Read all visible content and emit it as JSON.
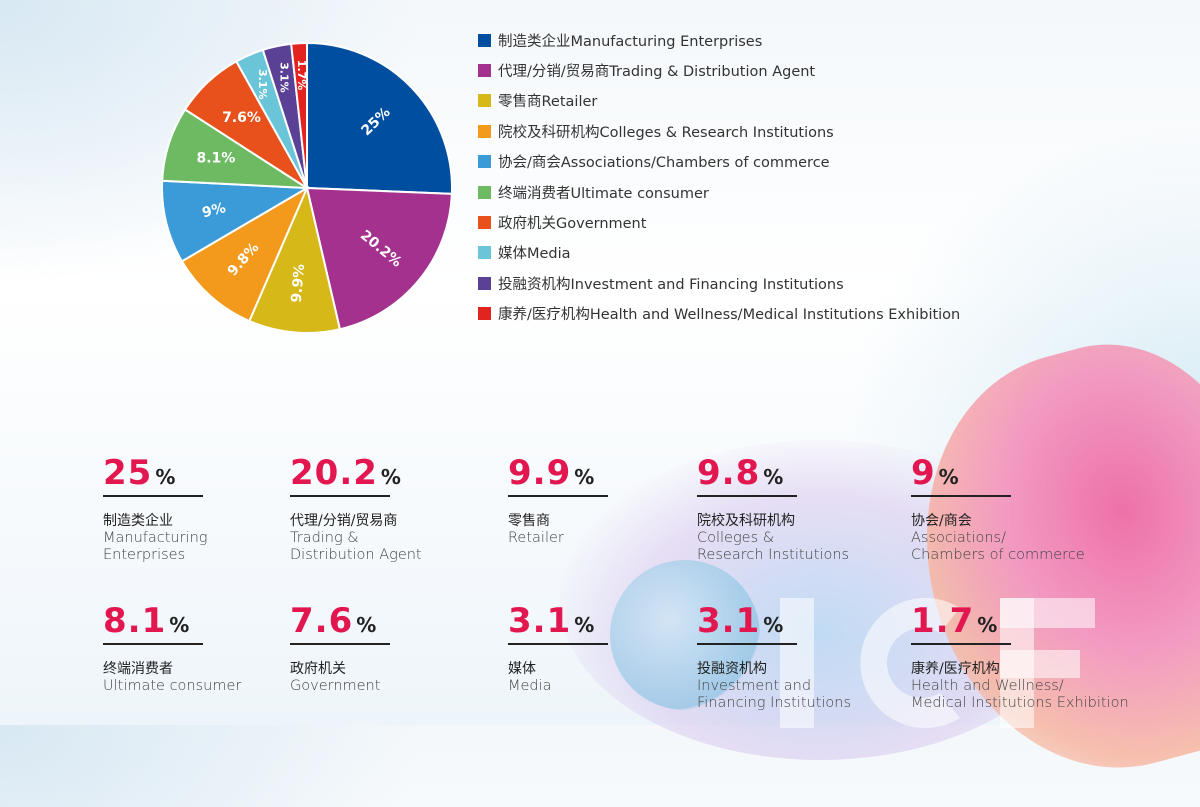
{
  "chart_data": {
    "type": "pie",
    "start": "top, clockwise",
    "slices": [
      {
        "label": "制造类企业Manufacturing Enterprises",
        "value": 25,
        "text": "25%",
        "color": "#004e9f"
      },
      {
        "label": "代理/分销/贸易商Trading & Distribution Agent",
        "value": 20.2,
        "text": "20.2%",
        "color": "#a4318e"
      },
      {
        "label": "零售商Retailer",
        "value": 9.9,
        "text": "9.9%",
        "color": "#d6b818"
      },
      {
        "label": "院校及科研机构Colleges & Research Institutions",
        "value": 9.8,
        "text": "9.8%",
        "color": "#f39a1d"
      },
      {
        "label": "协会/商会Associations/Chambers of commerce",
        "value": 9,
        "text": "9%",
        "color": "#3a9bd8"
      },
      {
        "label": "终端消费者Ultimate consumer",
        "value": 8.1,
        "text": "8.1%",
        "color": "#6dba63"
      },
      {
        "label": "政府机关Government",
        "value": 7.6,
        "text": "7.6%",
        "color": "#e8501c"
      },
      {
        "label": "媒体Media",
        "value": 3.1,
        "text": "3.1%",
        "color": "#6ac5d8"
      },
      {
        "label": "投融资机构Investment and Financing Institutions",
        "value": 3.1,
        "text": "3.1%",
        "color": "#5a4196"
      },
      {
        "label": "康养/医疗机构Health and Wellness/Medical Institutions Exhibition",
        "value": 1.7,
        "text": "1.7%",
        "color": "#e3231f"
      }
    ],
    "legend_position": "right"
  },
  "stats": [
    {
      "num": "25",
      "pct": "%",
      "cn": "制造类企业",
      "en1": "Manufacturing",
      "en2": "Enterprises"
    },
    {
      "num": "20.2",
      "pct": "%",
      "cn": "代理/分销/贸易商",
      "en1": "Trading &",
      "en2": "Distribution Agent"
    },
    {
      "num": "9.9",
      "pct": "%",
      "cn": "零售商",
      "en1": "Retailer",
      "en2": ""
    },
    {
      "num": "9.8",
      "pct": "%",
      "cn": "院校及科研机构",
      "en1": "Colleges &",
      "en2": "Research Institutions"
    },
    {
      "num": "9",
      "pct": "%",
      "cn": "协会/商会",
      "en1": "Associations/",
      "en2": "Chambers of commerce"
    },
    {
      "num": "8.1",
      "pct": "%",
      "cn": "终端消费者",
      "en1": "Ultimate consumer",
      "en2": ""
    },
    {
      "num": "7.6",
      "pct": "%",
      "cn": "政府机关",
      "en1": "Government",
      "en2": ""
    },
    {
      "num": "3.1",
      "pct": "%",
      "cn": "媒体",
      "en1": "Media",
      "en2": ""
    },
    {
      "num": "3.1",
      "pct": "%",
      "cn": "投融资机构",
      "en1": "Investment and",
      "en2": "Financing Institutions"
    },
    {
      "num": "1.7",
      "pct": "%",
      "cn": "康养/医疗机构",
      "en1": "Health and Wellness/",
      "en2": "Medical Institutions Exhibition"
    }
  ],
  "accent": "#e3174f"
}
